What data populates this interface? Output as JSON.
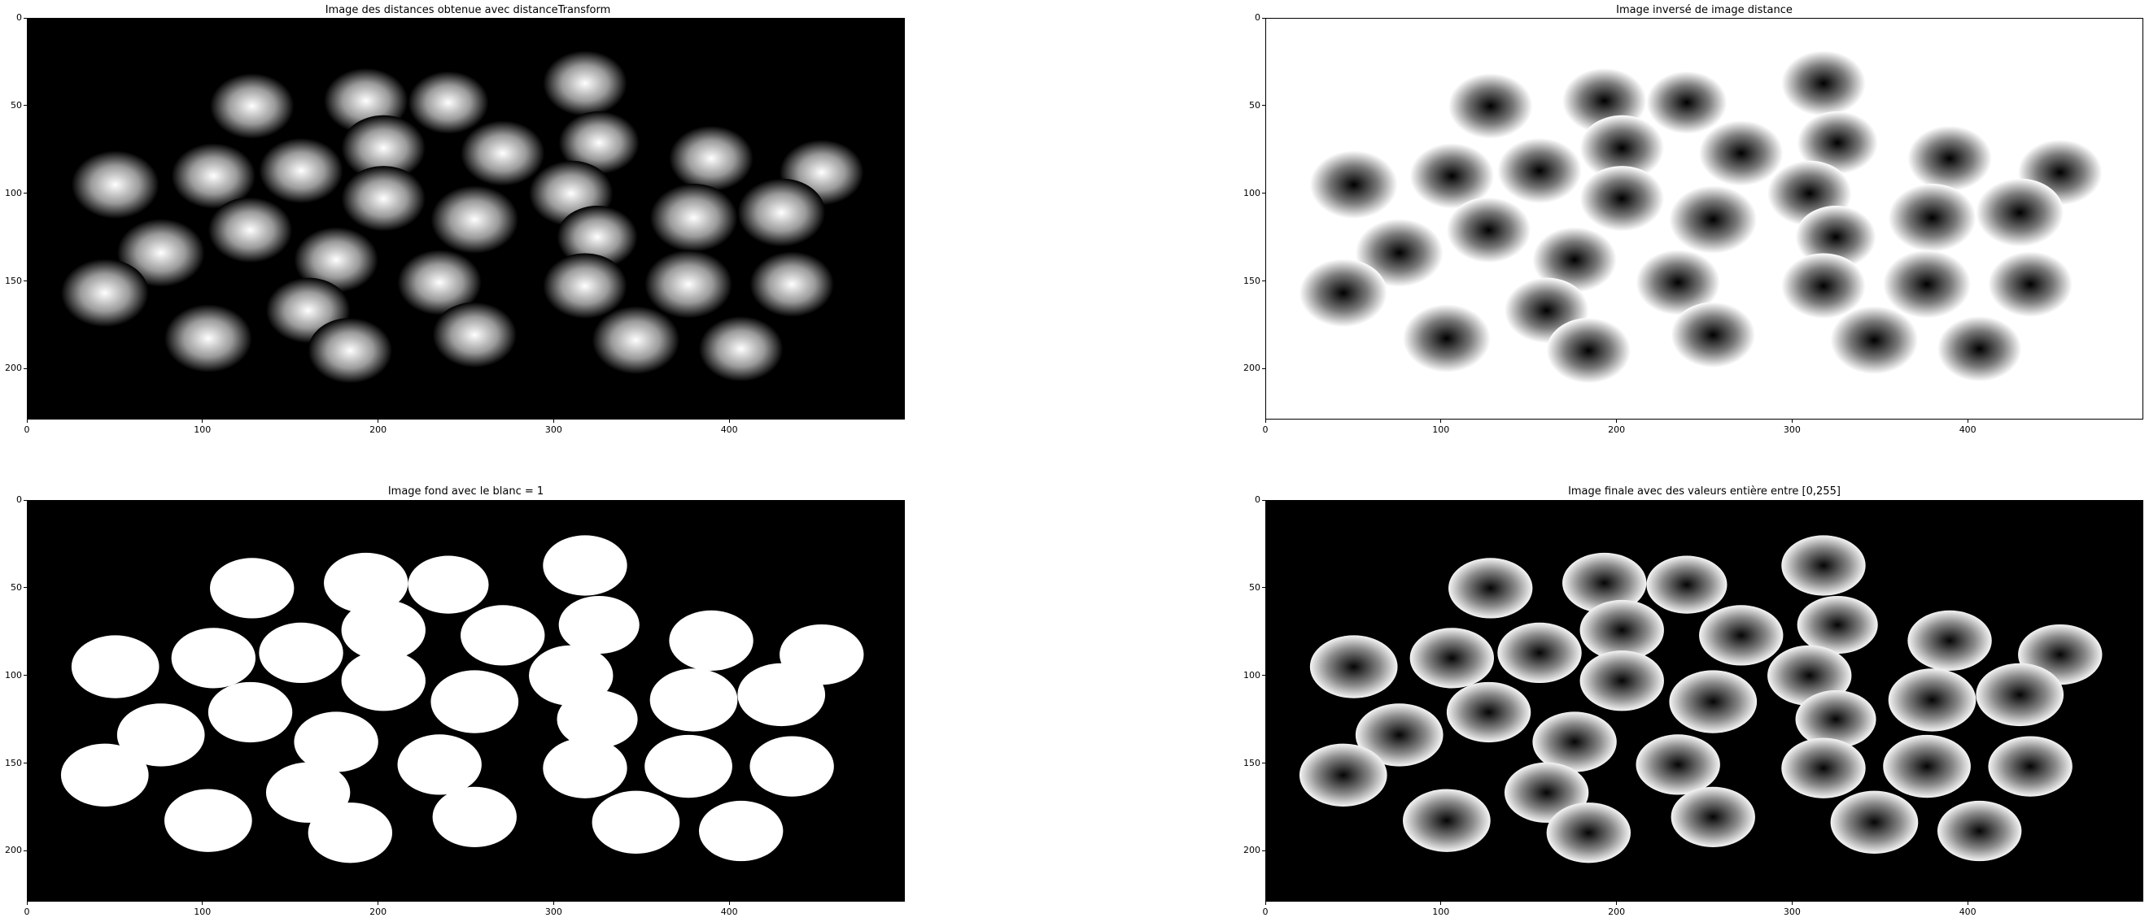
{
  "chart_data": [
    {
      "type": "image",
      "title": "Image des distances obtenue avec distanceTransform",
      "render": "distance",
      "xlim": [
        0,
        500
      ],
      "ylim": [
        229,
        0
      ],
      "xticks": [
        0,
        100,
        200,
        300,
        400
      ],
      "yticks": [
        0,
        50,
        100,
        150,
        200
      ]
    },
    {
      "type": "image",
      "title": "Image inversé de image distance",
      "render": "inverse",
      "xlim": [
        0,
        500
      ],
      "ylim": [
        229,
        0
      ],
      "xticks": [
        0,
        100,
        200,
        300,
        400
      ],
      "yticks": [
        0,
        50,
        100,
        150,
        200
      ]
    },
    {
      "type": "image",
      "title": "Image fond avec le blanc = 1",
      "render": "binary",
      "xlim": [
        0,
        500
      ],
      "ylim": [
        229,
        0
      ],
      "xticks": [
        0,
        100,
        200,
        300,
        400
      ],
      "yticks": [
        0,
        50,
        100,
        150,
        200
      ]
    },
    {
      "type": "image",
      "title": "Image finale avec des valeurs entière entre [0,255]",
      "render": "final",
      "xlim": [
        0,
        500
      ],
      "ylim": [
        229,
        0
      ],
      "xticks": [
        0,
        100,
        200,
        300,
        400
      ],
      "yticks": [
        0,
        50,
        100,
        150,
        200
      ]
    }
  ],
  "blobs": [
    {
      "x": 128,
      "y": 50,
      "r": 24
    },
    {
      "x": 193,
      "y": 47,
      "r": 24
    },
    {
      "x": 240,
      "y": 48,
      "r": 23
    },
    {
      "x": 318,
      "y": 37,
      "r": 24
    },
    {
      "x": 203,
      "y": 74,
      "r": 24
    },
    {
      "x": 271,
      "y": 77,
      "r": 24
    },
    {
      "x": 326,
      "y": 71,
      "r": 23
    },
    {
      "x": 390,
      "y": 80,
      "r": 24
    },
    {
      "x": 50,
      "y": 95,
      "r": 25
    },
    {
      "x": 106,
      "y": 90,
      "r": 24
    },
    {
      "x": 156,
      "y": 87,
      "r": 24
    },
    {
      "x": 453,
      "y": 88,
      "r": 24
    },
    {
      "x": 203,
      "y": 103,
      "r": 24
    },
    {
      "x": 310,
      "y": 100,
      "r": 24
    },
    {
      "x": 255,
      "y": 115,
      "r": 25
    },
    {
      "x": 380,
      "y": 114,
      "r": 25
    },
    {
      "x": 430,
      "y": 111,
      "r": 25
    },
    {
      "x": 127,
      "y": 121,
      "r": 24
    },
    {
      "x": 325,
      "y": 125,
      "r": 23
    },
    {
      "x": 76,
      "y": 134,
      "r": 25
    },
    {
      "x": 176,
      "y": 138,
      "r": 24
    },
    {
      "x": 235,
      "y": 151,
      "r": 24
    },
    {
      "x": 44,
      "y": 157,
      "r": 25
    },
    {
      "x": 160,
      "y": 167,
      "r": 24
    },
    {
      "x": 318,
      "y": 153,
      "r": 24
    },
    {
      "x": 377,
      "y": 152,
      "r": 25
    },
    {
      "x": 436,
      "y": 152,
      "r": 24
    },
    {
      "x": 103,
      "y": 183,
      "r": 25
    },
    {
      "x": 184,
      "y": 190,
      "r": 24
    },
    {
      "x": 255,
      "y": 181,
      "r": 24
    },
    {
      "x": 347,
      "y": 184,
      "r": 25
    },
    {
      "x": 407,
      "y": 189,
      "r": 24
    }
  ]
}
